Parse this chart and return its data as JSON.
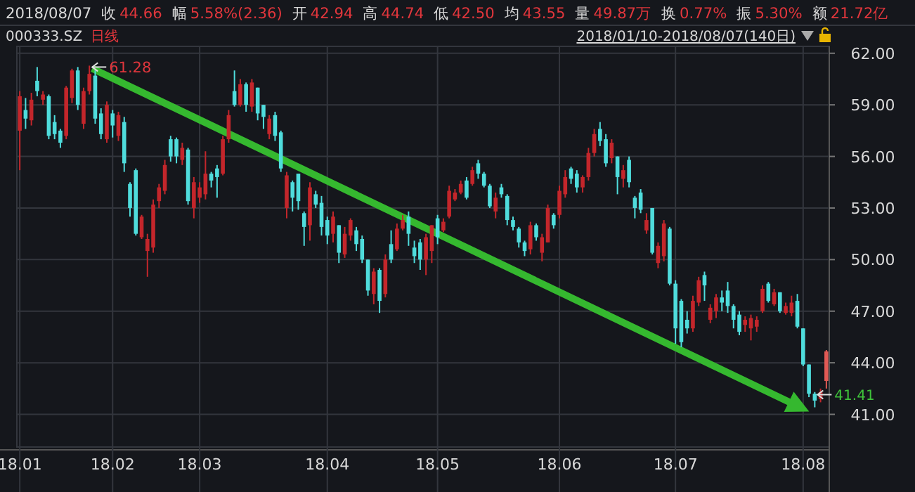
{
  "chart_data": {
    "type": "candlestick",
    "title": "2018/08/07 收 44.66 幅 5.58%(2.36) 开 42.94 高 44.74 低 42.50 均 43.55 量 49.87万 换 0.77% 振 5.30% 额 21.72亿",
    "subtitle": "000333.SZ 日线",
    "annotations": [
      "61.28",
      "41.41",
      "2018/01/10-2018/08/07(140日)"
    ],
    "colors": [
      "#c3262b",
      "#4fdcdc",
      "#c3262b",
      "#4fdcdc",
      "#c3262b",
      "#4fdcdc",
      "#4fdcdc",
      "#4fdcdc",
      "#c3262b",
      "#c3262b",
      "#4fdcdc",
      "#c3262b",
      "#c3262b",
      "#4fdcdc",
      "#4fdcdc",
      "#c3262b",
      "#4fdcdc",
      "#c3262b",
      "#4fdcdc",
      "#4fdcdc",
      "#4fdcdc",
      "#c3262b",
      "#c3262b",
      "#c3262b",
      "#c3262b",
      "#c3262b",
      "#4fdcdc",
      "#4fdcdc",
      "#c3262b",
      "#4fdcdc",
      "#c3262b",
      "#c3262b",
      "#c3262b",
      "#4fdcdc",
      "#4fdcdc",
      "#c3262b",
      "#c3262b",
      "#4fdcdc",
      "#c3262b",
      "#4fdcdc",
      "#c3262b",
      "#4fdcdc",
      "#4fdcdc",
      "#c3262b",
      "#4fdcdc",
      "#4fdcdc",
      "#c3262b",
      "#4fdcdc",
      "#4fdcdc",
      "#4fdcdc",
      "#c3262b",
      "#4fdcdc",
      "#4fdcdc",
      "#4fdcdc",
      "#c3262b",
      "#4fdcdc",
      "#c3262b",
      "#c3262b",
      "#4fdcdc",
      "#4fdcdc",
      "#4fdcdc",
      "#c3262b",
      "#4fdcdc",
      "#c3262b",
      "#4fdcdc",
      "#c3262b",
      "#c3262b",
      "#4fdcdc",
      "#4fdcdc",
      "#4fdcdc",
      "#c3262b",
      "#c3262b",
      "#4fdcdc",
      "#c3262b",
      "#c3262b",
      "#c3262b",
      "#c3262b",
      "#4fdcdc",
      "#c3262b",
      "#4fdcdc",
      "#4fdcdc",
      "#4fdcdc",
      "#c3262b",
      "#4fdcdc",
      "#4fdcdc",
      "#4fdcdc",
      "#4fdcdc",
      "#4fdcdc",
      "#c3262b",
      "#4fdcdc",
      "#c3262b",
      "#c3262b",
      "#4fdcdc",
      "#c3262b",
      "#c3262b",
      "#4fdcdc",
      "#4fdcdc",
      "#c3262b",
      "#c3262b",
      "#c3262b",
      "#4fdcdc",
      "#4fdcdc",
      "#c3262b",
      "#4fdcdc",
      "#c3262b",
      "#4fdcdc",
      "#4fdcdc",
      "#4fdcdc",
      "#c3262b",
      "#4fdcdc",
      "#c3262b",
      "#c3262b",
      "#4fdcdc",
      "#4fdcdc",
      "#4fdcdc",
      "#4fdcdc",
      "#c3262b",
      "#c3262b",
      "#4fdcdc",
      "#c3262b",
      "#c3262b",
      "#4fdcdc",
      "#4fdcdc",
      "#4fdcdc",
      "#4fdcdc",
      "#c3262b",
      "#c3262b",
      "#c3262b",
      "#c3262b",
      "#4fdcdc",
      "#c3262b",
      "#4fdcdc",
      "#c3262b",
      "#c3262b",
      "#4fdcdc",
      "#4fdcdc",
      "#4fdcdc",
      "#4fdcdc",
      "#c3262b",
      "#e25a55"
    ],
    "ylim": [
      39.1,
      62.4
    ],
    "yticks": [
      {
        "value": 41,
        "label": "41.00"
      },
      {
        "value": 44,
        "label": "44.00"
      },
      {
        "value": 47,
        "label": "47.00"
      },
      {
        "value": 50,
        "label": "50.00"
      },
      {
        "value": 53,
        "label": "53.00"
      },
      {
        "value": 56,
        "label": "56.00"
      },
      {
        "value": 59,
        "label": "59.00"
      },
      {
        "value": 62,
        "label": "62.00"
      }
    ],
    "grid": true,
    "categories": [
      "18.01",
      null,
      null,
      null,
      null,
      null,
      null,
      null,
      null,
      null,
      null,
      null,
      null,
      null,
      null,
      null,
      "18.02",
      null,
      null,
      null,
      null,
      null,
      null,
      null,
      null,
      null,
      null,
      null,
      null,
      null,
      null,
      "18.03",
      null,
      null,
      null,
      null,
      null,
      null,
      null,
      null,
      null,
      null,
      null,
      null,
      null,
      null,
      null,
      null,
      null,
      null,
      null,
      null,
      null,
      "18.04",
      null,
      null,
      null,
      null,
      null,
      null,
      null,
      null,
      null,
      null,
      null,
      null,
      null,
      null,
      null,
      null,
      null,
      null,
      "18.05",
      null,
      null,
      null,
      null,
      null,
      null,
      null,
      null,
      null,
      null,
      null,
      null,
      null,
      null,
      null,
      null,
      null,
      null,
      null,
      null,
      "18.06",
      null,
      null,
      null,
      null,
      null,
      null,
      null,
      null,
      null,
      null,
      null,
      null,
      null,
      null,
      null,
      null,
      null,
      null,
      null,
      "18.07",
      null,
      null,
      null,
      null,
      null,
      null,
      null,
      null,
      null,
      null,
      null,
      null,
      null,
      null,
      null,
      null,
      null,
      null,
      null,
      null,
      null,
      "18.08",
      null,
      null,
      null,
      null
    ],
    "ohlc": [
      [
        57.5,
        59.8,
        55.2,
        59.5
      ],
      [
        58.7,
        59.4,
        57.6,
        58.2
      ],
      [
        58.1,
        59.7,
        57.8,
        59.3
      ],
      [
        60.4,
        61.2,
        59.5,
        59.8
      ],
      [
        59.3,
        59.8,
        59.0,
        59.6
      ],
      [
        59.5,
        59.6,
        57.0,
        57.2
      ],
      [
        58.0,
        58.4,
        57.0,
        57.3
      ],
      [
        57.5,
        57.6,
        56.5,
        56.8
      ],
      [
        57.2,
        60.1,
        57.0,
        60.0
      ],
      [
        59.4,
        61.1,
        59.1,
        61.0
      ],
      [
        61.0,
        61.2,
        58.7,
        59.0
      ],
      [
        57.9,
        60.0,
        57.6,
        59.8
      ],
      [
        59.8,
        61.28,
        59.6,
        60.8
      ],
      [
        60.7,
        61.0,
        57.9,
        58.2
      ],
      [
        58.5,
        58.8,
        57.0,
        57.3
      ],
      [
        57.0,
        59.2,
        56.8,
        59.0
      ],
      [
        58.5,
        58.7,
        57.1,
        57.8
      ],
      [
        57.2,
        58.6,
        56.9,
        58.4
      ],
      [
        58.0,
        58.3,
        55.1,
        55.6
      ],
      [
        54.4,
        54.5,
        52.5,
        53.0
      ],
      [
        55.2,
        55.3,
        51.4,
        51.5
      ],
      [
        51.3,
        52.6,
        51.2,
        52.5
      ],
      [
        50.5,
        51.5,
        49.0,
        51.2
      ],
      [
        50.7,
        53.5,
        50.4,
        53.2
      ],
      [
        53.4,
        54.4,
        53.0,
        54.2
      ],
      [
        54.0,
        55.8,
        53.8,
        55.5
      ],
      [
        57.0,
        57.2,
        55.7,
        56.0
      ],
      [
        57.0,
        57.1,
        55.6,
        56.0
      ],
      [
        55.8,
        56.8,
        55.5,
        56.5
      ],
      [
        56.4,
        56.5,
        53.2,
        53.4
      ],
      [
        53.0,
        54.8,
        52.4,
        54.5
      ],
      [
        53.6,
        54.5,
        53.3,
        54.2
      ],
      [
        53.8,
        56.3,
        53.5,
        55.0
      ],
      [
        55.0,
        55.1,
        54.2,
        54.6
      ],
      [
        55.3,
        55.5,
        53.6,
        54.8
      ],
      [
        55.0,
        57.2,
        54.9,
        57.0
      ],
      [
        57.0,
        58.7,
        56.8,
        58.4
      ],
      [
        59.8,
        61.0,
        58.9,
        59.0
      ],
      [
        59.0,
        60.5,
        58.9,
        60.2
      ],
      [
        60.2,
        60.3,
        58.6,
        59.0
      ],
      [
        58.9,
        60.5,
        58.6,
        60.3
      ],
      [
        60.0,
        60.0,
        58.1,
        58.5
      ],
      [
        59.0,
        59.0,
        57.6,
        58.3
      ],
      [
        57.3,
        58.4,
        57.0,
        58.2
      ],
      [
        58.4,
        58.6,
        56.9,
        57.2
      ],
      [
        57.4,
        57.5,
        55.1,
        55.3
      ],
      [
        53.0,
        55.1,
        52.4,
        54.9
      ],
      [
        54.5,
        54.6,
        52.8,
        53.6
      ],
      [
        55.0,
        55.0,
        52.9,
        53.4
      ],
      [
        52.7,
        52.8,
        50.8,
        51.9
      ],
      [
        52.0,
        54.5,
        51.1,
        54.2
      ],
      [
        53.8,
        54.0,
        53.0,
        53.2
      ],
      [
        53.3,
        53.7,
        51.4,
        51.9
      ],
      [
        52.3,
        52.5,
        50.9,
        51.4
      ],
      [
        51.5,
        52.8,
        51.0,
        52.5
      ],
      [
        52.0,
        52.0,
        49.8,
        50.4
      ],
      [
        50.3,
        51.9,
        50.1,
        51.5
      ],
      [
        51.4,
        52.4,
        51.1,
        52.3
      ],
      [
        51.7,
        51.9,
        50.5,
        50.9
      ],
      [
        51.2,
        51.4,
        49.8,
        50.0
      ],
      [
        50.0,
        50.0,
        47.9,
        48.2
      ],
      [
        48.0,
        49.5,
        47.4,
        49.3
      ],
      [
        49.4,
        49.5,
        46.9,
        47.6
      ],
      [
        48.0,
        50.3,
        47.8,
        50.0
      ],
      [
        50.9,
        51.7,
        49.8,
        50.0
      ],
      [
        50.6,
        52.1,
        50.5,
        51.8
      ],
      [
        51.8,
        52.6,
        51.7,
        52.3
      ],
      [
        52.5,
        52.8,
        50.8,
        51.5
      ],
      [
        50.7,
        51.1,
        49.8,
        50.2
      ],
      [
        51.0,
        51.2,
        49.4,
        50.0
      ],
      [
        50.0,
        51.5,
        49.1,
        51.3
      ],
      [
        50.5,
        52.0,
        49.8,
        52.0
      ],
      [
        52.4,
        52.6,
        50.9,
        51.3
      ],
      [
        51.7,
        52.4,
        51.6,
        52.2
      ],
      [
        52.5,
        54.3,
        52.4,
        54.0
      ],
      [
        53.5,
        54.1,
        53.4,
        53.9
      ],
      [
        53.9,
        54.6,
        53.8,
        54.4
      ],
      [
        54.6,
        54.8,
        53.5,
        53.6
      ],
      [
        54.4,
        55.4,
        54.3,
        55.2
      ],
      [
        55.6,
        55.8,
        54.7,
        55.0
      ],
      [
        55.0,
        55.1,
        54.2,
        54.3
      ],
      [
        54.3,
        54.4,
        53.0,
        53.1
      ],
      [
        52.8,
        53.9,
        52.4,
        53.6
      ],
      [
        54.2,
        54.4,
        53.6,
        53.8
      ],
      [
        53.7,
        53.8,
        52.0,
        52.3
      ],
      [
        52.3,
        52.5,
        51.7,
        51.9
      ],
      [
        51.8,
        51.9,
        50.7,
        51.0
      ],
      [
        51.0,
        51.1,
        50.2,
        50.5
      ],
      [
        50.6,
        52.2,
        50.3,
        52.0
      ],
      [
        52.0,
        52.1,
        51.1,
        51.3
      ],
      [
        50.4,
        51.5,
        49.9,
        51.3
      ],
      [
        51.0,
        53.2,
        51.0,
        53.0
      ],
      [
        52.6,
        52.7,
        51.8,
        52.0
      ],
      [
        52.6,
        54.3,
        52.4,
        54.0
      ],
      [
        53.8,
        55.2,
        53.6,
        54.8
      ],
      [
        55.3,
        55.4,
        54.4,
        54.7
      ],
      [
        55.0,
        55.2,
        53.9,
        54.2
      ],
      [
        54.2,
        54.9,
        53.9,
        54.8
      ],
      [
        54.8,
        56.5,
        54.6,
        56.2
      ],
      [
        56.2,
        57.6,
        56.0,
        57.3
      ],
      [
        57.6,
        58.0,
        56.6,
        56.9
      ],
      [
        57.0,
        57.3,
        55.4,
        55.6
      ],
      [
        55.9,
        57.0,
        55.6,
        56.8
      ],
      [
        56.0,
        56.0,
        53.8,
        54.8
      ],
      [
        54.7,
        55.5,
        54.2,
        55.2
      ],
      [
        55.8,
        56.0,
        54.2,
        54.5
      ],
      [
        53.6,
        53.7,
        52.4,
        53.0
      ],
      [
        53.9,
        54.1,
        52.7,
        52.9
      ],
      [
        51.7,
        52.7,
        51.5,
        52.3
      ],
      [
        53.0,
        53.0,
        50.3,
        50.4
      ],
      [
        49.8,
        51.0,
        49.5,
        50.8
      ],
      [
        50.2,
        52.3,
        49.9,
        52.1
      ],
      [
        51.8,
        51.9,
        48.5,
        48.6
      ],
      [
        48.6,
        48.8,
        45.1,
        46.0
      ],
      [
        47.6,
        47.7,
        44.9,
        45.2
      ],
      [
        46.5,
        47.0,
        45.7,
        46.0
      ],
      [
        46.0,
        47.9,
        45.8,
        47.6
      ],
      [
        47.5,
        49.0,
        47.3,
        48.8
      ],
      [
        49.1,
        49.3,
        47.6,
        48.5
      ],
      [
        46.5,
        47.4,
        46.3,
        47.2
      ],
      [
        47.0,
        48.0,
        46.6,
        47.8
      ],
      [
        47.8,
        48.2,
        47.0,
        47.5
      ],
      [
        48.2,
        48.7,
        46.9,
        47.3
      ],
      [
        47.3,
        47.4,
        46.0,
        46.5
      ],
      [
        46.8,
        47.0,
        45.6,
        45.8
      ],
      [
        46.2,
        46.7,
        45.8,
        46.5
      ],
      [
        46.0,
        46.8,
        45.3,
        46.6
      ],
      [
        46.1,
        46.7,
        45.8,
        46.5
      ],
      [
        47.0,
        48.5,
        46.9,
        48.3
      ],
      [
        48.6,
        48.7,
        47.5,
        47.6
      ],
      [
        47.4,
        48.3,
        47.3,
        48.1
      ],
      [
        48.1,
        48.1,
        46.9,
        47.0
      ],
      [
        46.9,
        47.5,
        46.8,
        47.3
      ],
      [
        46.9,
        47.9,
        46.7,
        47.5
      ],
      [
        47.6,
        48.0,
        46.0,
        46.1
      ],
      [
        46.0,
        46.0,
        43.8,
        43.9
      ],
      [
        43.9,
        43.9,
        42.0,
        42.2
      ],
      [
        42.2,
        42.3,
        41.41,
        41.8
      ],
      [
        41.9,
        42.5,
        41.7,
        42.3
      ],
      [
        42.94,
        44.74,
        42.5,
        44.66
      ]
    ]
  }
}
